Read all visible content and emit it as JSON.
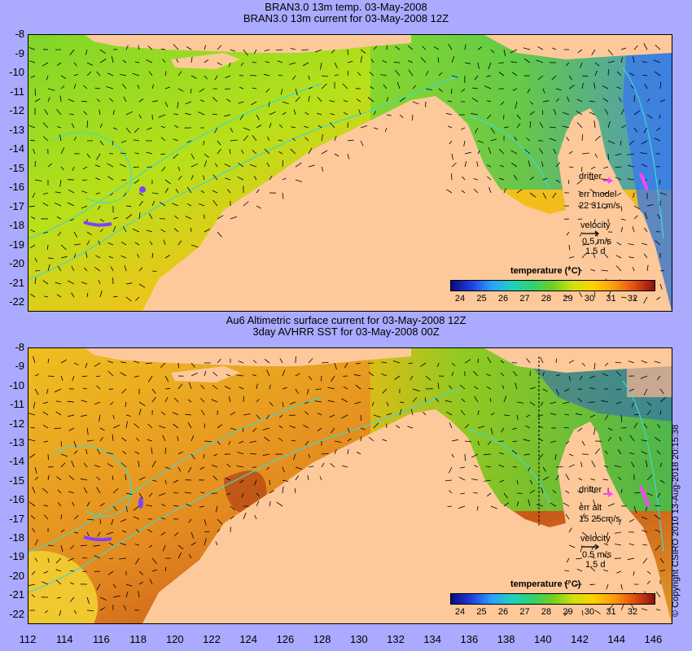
{
  "top_panel": {
    "title_line1": "BRAN3.0 13m temp. 03-May-2008",
    "title_line2": "BRAN3.0 13m current for 03-May-2008 12Z",
    "drifter_label": "drifter",
    "err_label": "err model",
    "err_value": "22 31cm/s",
    "velocity_label": "velocity",
    "velocity_scale": "0.5 m/s",
    "velocity_time": "1.5 d",
    "colorbar_title": "temperature (°C)"
  },
  "bottom_panel": {
    "title_line1": "Au6 Altimetric surface current for 03-May-2008 12Z",
    "title_line2": "3day AVHRR SST for 03-May-2008 00Z",
    "drifter_label": "drifter",
    "err_label": "err alt",
    "err_value": "15 25cm/s",
    "velocity_label": "velocity",
    "velocity_scale": "0.5 m/s",
    "velocity_time": "1.5 d",
    "colorbar_title": "temperature (°C)"
  },
  "colorbar_ticks": [
    "24",
    "25",
    "26",
    "27",
    "28",
    "29",
    "30",
    "31",
    "32"
  ],
  "y_axis_ticks": [
    "-8",
    "-9",
    "-10",
    "-11",
    "-12",
    "-13",
    "-14",
    "-15",
    "-16",
    "-17",
    "-18",
    "-19",
    "-20",
    "-21",
    "-22"
  ],
  "x_axis_ticks": [
    "112",
    "114",
    "116",
    "118",
    "120",
    "122",
    "124",
    "126",
    "128",
    "130",
    "132",
    "134",
    "136",
    "138",
    "140",
    "142",
    "144",
    "146"
  ],
  "copyright": "© Copyright CSIRO 2010   13-Aug-2018 20:15:38",
  "colors": {
    "background": "#aaaaff",
    "land": "#fdc99b",
    "top_sea": "#a6e21a",
    "bottom_sea": "#e8a22a",
    "isobath": "#40d8d0",
    "drifter": "#ff40ff"
  }
}
